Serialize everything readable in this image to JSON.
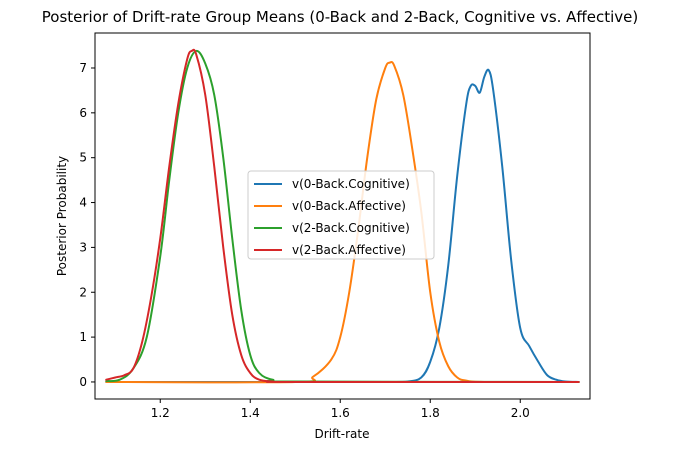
{
  "chart_data": {
    "type": "line",
    "title": "Posterior of Drift-rate Group Means (0-Back and 2-Back, Cognitive vs. Affective)",
    "xlabel": "Drift-rate",
    "ylabel": "Posterior Probability",
    "xlim": [
      1.055,
      2.155
    ],
    "ylim": [
      -0.38,
      7.78
    ],
    "xticks": [
      1.2,
      1.4,
      1.6,
      1.8,
      2.0
    ],
    "xtick_labels": [
      "1.2",
      "1.4",
      "1.6",
      "1.8",
      "2.0"
    ],
    "yticks": [
      0,
      1,
      2,
      3,
      4,
      5,
      6,
      7
    ],
    "ytick_labels": [
      "0",
      "1",
      "2",
      "3",
      "4",
      "5",
      "6",
      "7"
    ],
    "grid": false,
    "legend_position": "center-right",
    "series": [
      {
        "name": "v(0-Back.Cognitive)",
        "color": "#1f77b4",
        "x": [
          1.08,
          1.6,
          1.7,
          1.75,
          1.78,
          1.8,
          1.82,
          1.84,
          1.86,
          1.88,
          1.89,
          1.9,
          1.91,
          1.92,
          1.93,
          1.94,
          1.96,
          1.98,
          2.0,
          2.02,
          2.04,
          2.06,
          2.08,
          2.1,
          2.13
        ],
        "y": [
          0.0,
          0.0,
          0.0,
          0.01,
          0.1,
          0.45,
          1.2,
          2.6,
          4.6,
          6.2,
          6.6,
          6.6,
          6.45,
          6.8,
          6.95,
          6.5,
          4.8,
          2.7,
          1.2,
          0.8,
          0.45,
          0.15,
          0.05,
          0.01,
          0.0
        ]
      },
      {
        "name": "v(0-Back.Affective)",
        "color": "#ff7f0e",
        "x": [
          1.08,
          1.5,
          1.54,
          1.58,
          1.6,
          1.62,
          1.64,
          1.66,
          1.68,
          1.7,
          1.71,
          1.72,
          1.74,
          1.76,
          1.78,
          1.8,
          1.82,
          1.84,
          1.86,
          1.88,
          1.92,
          2.13
        ],
        "y": [
          0.0,
          0.0,
          0.12,
          0.5,
          1.0,
          2.0,
          3.4,
          5.0,
          6.3,
          7.0,
          7.12,
          7.05,
          6.4,
          5.2,
          3.8,
          2.0,
          0.9,
          0.35,
          0.1,
          0.03,
          0.0,
          0.0
        ]
      },
      {
        "name": "v(2-Back.Cognitive)",
        "color": "#2ca02c",
        "x": [
          1.08,
          1.11,
          1.14,
          1.17,
          1.2,
          1.22,
          1.24,
          1.26,
          1.28,
          1.3,
          1.32,
          1.34,
          1.36,
          1.38,
          1.4,
          1.42,
          1.45,
          1.5,
          2.13
        ],
        "y": [
          0.02,
          0.05,
          0.3,
          1.0,
          2.8,
          4.5,
          6.0,
          7.0,
          7.38,
          7.1,
          6.4,
          5.0,
          3.2,
          1.6,
          0.6,
          0.2,
          0.05,
          0.01,
          0.0
        ]
      },
      {
        "name": "v(2-Back.Affective)",
        "color": "#d62728",
        "x": [
          1.08,
          1.1,
          1.12,
          1.14,
          1.16,
          1.18,
          1.2,
          1.22,
          1.24,
          1.26,
          1.27,
          1.28,
          1.3,
          1.32,
          1.34,
          1.36,
          1.38,
          1.4,
          1.42,
          1.45,
          1.5,
          2.13
        ],
        "y": [
          0.05,
          0.1,
          0.15,
          0.3,
          0.9,
          1.9,
          3.2,
          4.8,
          6.2,
          7.2,
          7.38,
          7.3,
          6.4,
          4.8,
          3.0,
          1.5,
          0.6,
          0.2,
          0.05,
          0.01,
          0.0,
          0.0
        ]
      }
    ]
  }
}
